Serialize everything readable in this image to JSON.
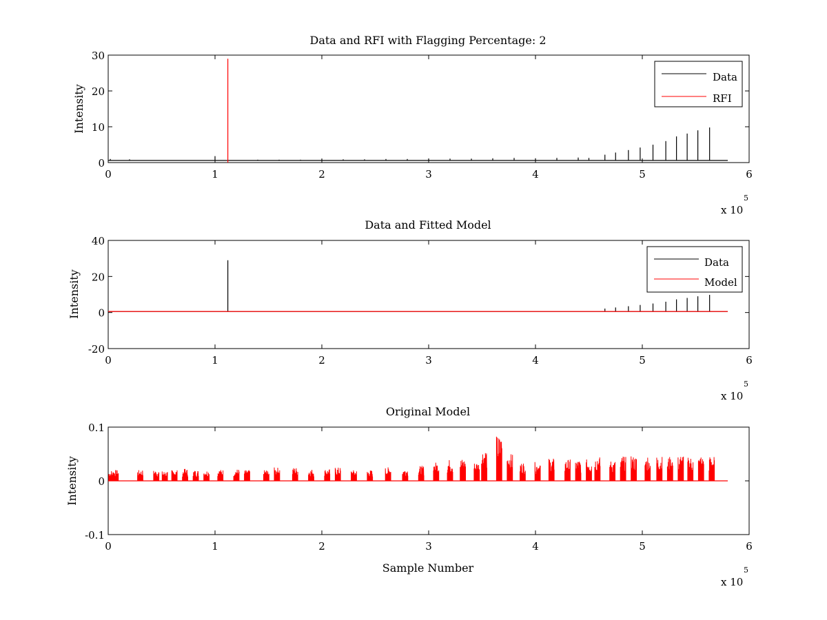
{
  "figure": {
    "background": "#ffffff",
    "axis_color": "#000000",
    "series_colors": {
      "black": "#000000",
      "red": "#ff0000"
    }
  },
  "chart_data": [
    {
      "type": "line",
      "title": "Data and RFI with Flagging Percentage: 2",
      "xlabel": "",
      "ylabel": "Intensity",
      "xlim": [
        0,
        6
      ],
      "ylim": [
        0,
        30
      ],
      "x_multiplier": "x 10",
      "x_multiplier_exponent": "5",
      "xticks": [
        "0",
        "1",
        "2",
        "3",
        "4",
        "5",
        "6"
      ],
      "yticks": [
        "0",
        "10",
        "20",
        "30"
      ],
      "ytick_values": [
        0,
        10,
        20,
        30
      ],
      "legend": "top-right",
      "legend_entries": [
        "Data",
        "RFI"
      ],
      "baseline": {
        "Data": 0.6
      },
      "series": [
        {
          "name": "Data",
          "color": "#000000",
          "spikes": [
            [
              0.02,
              1.0
            ],
            [
              0.2,
              0.9
            ],
            [
              1.0,
              1.8
            ],
            [
              1.4,
              0.8
            ],
            [
              1.6,
              0.8
            ],
            [
              1.8,
              0.8
            ],
            [
              2.0,
              0.9
            ],
            [
              2.2,
              0.9
            ],
            [
              2.4,
              0.9
            ],
            [
              2.6,
              1.0
            ],
            [
              2.8,
              1.0
            ],
            [
              3.0,
              1.1
            ],
            [
              3.2,
              1.1
            ],
            [
              3.4,
              1.1
            ],
            [
              3.6,
              1.2
            ],
            [
              3.8,
              1.3
            ],
            [
              4.0,
              1.2
            ],
            [
              4.2,
              1.3
            ],
            [
              4.4,
              1.4
            ],
            [
              4.5,
              1.3
            ],
            [
              4.65,
              2.2
            ],
            [
              4.75,
              2.8
            ],
            [
              4.87,
              3.5
            ],
            [
              4.98,
              4.2
            ],
            [
              5.1,
              5.0
            ],
            [
              5.22,
              6.0
            ],
            [
              5.32,
              7.3
            ],
            [
              5.42,
              8.1
            ],
            [
              5.52,
              9.0
            ],
            [
              5.63,
              9.8
            ]
          ],
          "x_end": 5.8
        },
        {
          "name": "RFI",
          "color": "#ff0000",
          "spikes": [
            [
              1.12,
              29.0
            ]
          ]
        }
      ]
    },
    {
      "type": "line",
      "title": "Data and Fitted Model",
      "xlabel": "",
      "ylabel": "Intensity",
      "xlim": [
        0,
        6
      ],
      "ylim": [
        -20,
        40
      ],
      "x_multiplier": "x 10",
      "x_multiplier_exponent": "5",
      "xticks": [
        "0",
        "1",
        "2",
        "3",
        "4",
        "5",
        "6"
      ],
      "yticks": [
        "-20",
        "0",
        "20",
        "40"
      ],
      "ytick_values": [
        -20,
        0,
        20,
        40
      ],
      "legend": "top-right",
      "legend_entries": [
        "Data",
        "Model"
      ],
      "series": [
        {
          "name": "Data",
          "color": "#000000",
          "spikes": [
            [
              1.12,
              29.0
            ],
            [
              4.65,
              2.2
            ],
            [
              4.75,
              2.8
            ],
            [
              4.87,
              3.5
            ],
            [
              4.98,
              4.2
            ],
            [
              5.1,
              5.0
            ],
            [
              5.22,
              6.0
            ],
            [
              5.32,
              7.3
            ],
            [
              5.42,
              8.1
            ],
            [
              5.52,
              9.0
            ],
            [
              5.63,
              9.8
            ]
          ],
          "baseline": 0.6,
          "x_end": 5.8
        },
        {
          "name": "Model",
          "color": "#ff0000",
          "baseline": 0.6,
          "x_end": 5.8
        }
      ]
    },
    {
      "type": "line",
      "title": "Original Model",
      "xlabel": "Sample Number",
      "ylabel": "Intensity",
      "xlim": [
        0,
        6
      ],
      "ylim": [
        -0.1,
        0.1
      ],
      "x_multiplier": "x 10",
      "x_multiplier_exponent": "5",
      "xticks": [
        "0",
        "1",
        "2",
        "3",
        "4",
        "5",
        "6"
      ],
      "yticks": [
        "-0.1",
        "0",
        "0.1"
      ],
      "ytick_values": [
        -0.1,
        0,
        0.1
      ],
      "legend": "none",
      "series": [
        {
          "color": "#ff0000",
          "baseline": 0.0,
          "x_end": 5.8,
          "clusters": [
            [
              0.03,
              0.018
            ],
            [
              0.07,
              0.02
            ],
            [
              0.3,
              0.02
            ],
            [
              0.45,
              0.02
            ],
            [
              0.53,
              0.018
            ],
            [
              0.62,
              0.02
            ],
            [
              0.72,
              0.022
            ],
            [
              0.82,
              0.02
            ],
            [
              0.92,
              0.02
            ],
            [
              1.05,
              0.021
            ],
            [
              1.2,
              0.022
            ],
            [
              1.3,
              0.02
            ],
            [
              1.48,
              0.02
            ],
            [
              1.58,
              0.025
            ],
            [
              1.75,
              0.025
            ],
            [
              1.9,
              0.022
            ],
            [
              2.05,
              0.022
            ],
            [
              2.15,
              0.025
            ],
            [
              2.3,
              0.02
            ],
            [
              2.45,
              0.02
            ],
            [
              2.62,
              0.025
            ],
            [
              2.78,
              0.023
            ],
            [
              2.93,
              0.028
            ],
            [
              3.07,
              0.035
            ],
            [
              3.2,
              0.04
            ],
            [
              3.32,
              0.042
            ],
            [
              3.45,
              0.035
            ],
            [
              3.52,
              0.06
            ],
            [
              3.66,
              0.084
            ],
            [
              3.76,
              0.05
            ],
            [
              3.88,
              0.035
            ],
            [
              4.02,
              0.035
            ],
            [
              4.15,
              0.042
            ],
            [
              4.3,
              0.04
            ],
            [
              4.4,
              0.04
            ],
            [
              4.5,
              0.04
            ],
            [
              4.58,
              0.045
            ],
            [
              4.72,
              0.038
            ],
            [
              4.82,
              0.045
            ],
            [
              4.92,
              0.046
            ],
            [
              5.05,
              0.044
            ],
            [
              5.16,
              0.046
            ],
            [
              5.26,
              0.045
            ],
            [
              5.36,
              0.046
            ],
            [
              5.45,
              0.045
            ],
            [
              5.55,
              0.045
            ],
            [
              5.65,
              0.046
            ]
          ]
        }
      ]
    }
  ]
}
